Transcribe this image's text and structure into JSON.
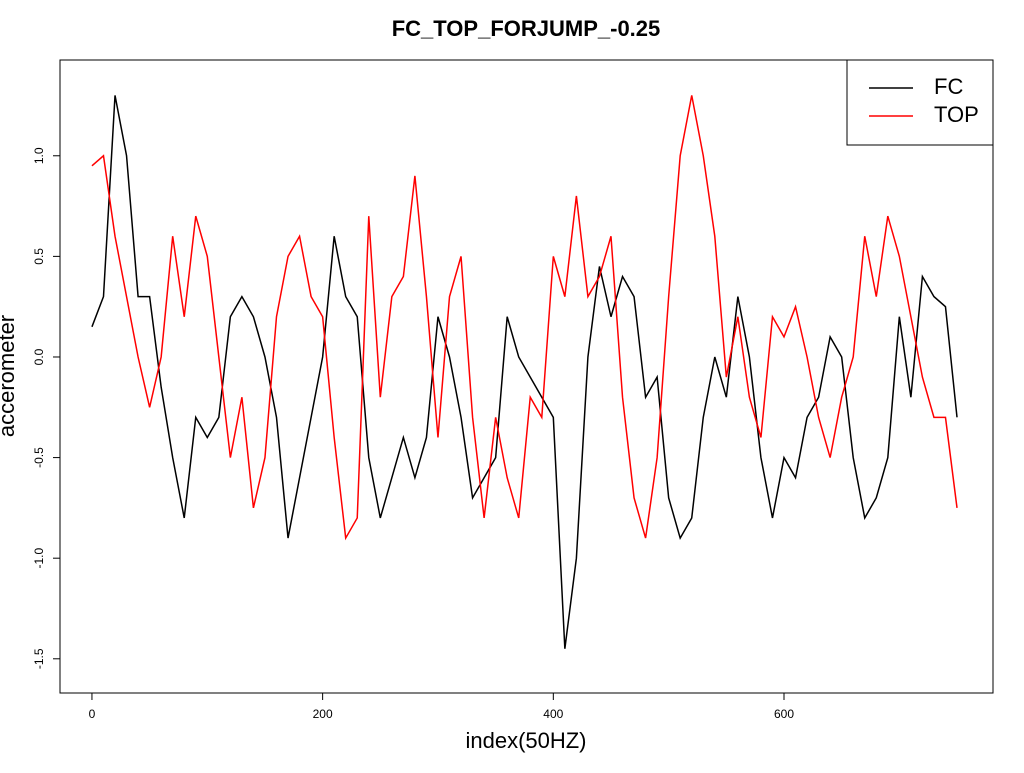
{
  "chart_data": {
    "type": "line",
    "title": "FC_TOP_FORJUMP_-0.25",
    "xlabel": "index(50HZ)",
    "ylabel": "accerometer",
    "x": [
      0,
      10,
      20,
      30,
      40,
      50,
      60,
      70,
      80,
      90,
      100,
      110,
      120,
      130,
      140,
      150,
      160,
      170,
      180,
      190,
      200,
      210,
      220,
      230,
      240,
      250,
      260,
      270,
      280,
      290,
      300,
      310,
      320,
      330,
      340,
      350,
      360,
      370,
      380,
      390,
      400,
      410,
      420,
      430,
      440,
      450,
      460,
      470,
      480,
      490,
      500,
      510,
      520,
      530,
      540,
      550,
      560,
      570,
      580,
      590,
      600,
      610,
      620,
      630,
      640,
      650,
      660,
      670,
      680,
      690,
      700,
      710,
      720,
      730,
      740,
      750
    ],
    "series": [
      {
        "name": "FC",
        "color": "#000000",
        "values": [
          0.15,
          0.3,
          1.3,
          1.0,
          0.3,
          0.3,
          -0.15,
          -0.5,
          -0.8,
          -0.3,
          -0.4,
          -0.3,
          0.2,
          0.3,
          0.2,
          0.0,
          -0.3,
          -0.9,
          -0.6,
          -0.3,
          0.0,
          0.6,
          0.3,
          0.2,
          -0.5,
          -0.8,
          -0.6,
          -0.4,
          -0.6,
          -0.4,
          0.2,
          0.0,
          -0.3,
          -0.7,
          -0.6,
          -0.5,
          0.2,
          0.0,
          -0.1,
          -0.2,
          -0.3,
          -1.45,
          -1.0,
          0.0,
          0.45,
          0.2,
          0.4,
          0.3,
          -0.2,
          -0.1,
          -0.7,
          -0.9,
          -0.8,
          -0.3,
          0.0,
          -0.2,
          0.3,
          0.0,
          -0.5,
          -0.8,
          -0.5,
          -0.6,
          -0.3,
          -0.2,
          0.1,
          0.0,
          -0.5,
          -0.8,
          -0.7,
          -0.5,
          0.2,
          -0.2,
          0.4,
          0.3,
          0.25,
          -0.3
        ]
      },
      {
        "name": "TOP",
        "color": "#ff0000",
        "values": [
          0.95,
          1.0,
          0.6,
          0.3,
          0.0,
          -0.25,
          0.0,
          0.6,
          0.2,
          0.7,
          0.5,
          0.0,
          -0.5,
          -0.2,
          -0.75,
          -0.5,
          0.2,
          0.5,
          0.6,
          0.3,
          0.2,
          -0.4,
          -0.9,
          -0.8,
          0.7,
          -0.2,
          0.3,
          0.4,
          0.9,
          0.3,
          -0.4,
          0.3,
          0.5,
          -0.3,
          -0.8,
          -0.3,
          -0.6,
          -0.8,
          -0.2,
          -0.3,
          0.5,
          0.3,
          0.8,
          0.3,
          0.4,
          0.6,
          -0.2,
          -0.7,
          -0.9,
          -0.5,
          0.3,
          1.0,
          1.3,
          1.0,
          0.6,
          -0.1,
          0.2,
          -0.2,
          -0.4,
          0.2,
          0.1,
          0.25,
          0.0,
          -0.3,
          -0.5,
          -0.2,
          0.0,
          0.6,
          0.3,
          0.7,
          0.5,
          0.2,
          -0.1,
          -0.3,
          -0.3,
          -0.75
        ]
      }
    ],
    "xlim": [
      -27.7,
      781.2
    ],
    "ylim": [
      -1.67,
      1.476
    ],
    "xticks": [
      0,
      200,
      400,
      600
    ],
    "yticks": [
      -1.5,
      {
        "value": -1,
        "label": "-1.0"
      },
      -0.5,
      {
        "value": 0,
        "label": "0.0"
      },
      0.5,
      {
        "value": 1,
        "label": "1.0"
      }
    ],
    "legend": "top-right"
  }
}
